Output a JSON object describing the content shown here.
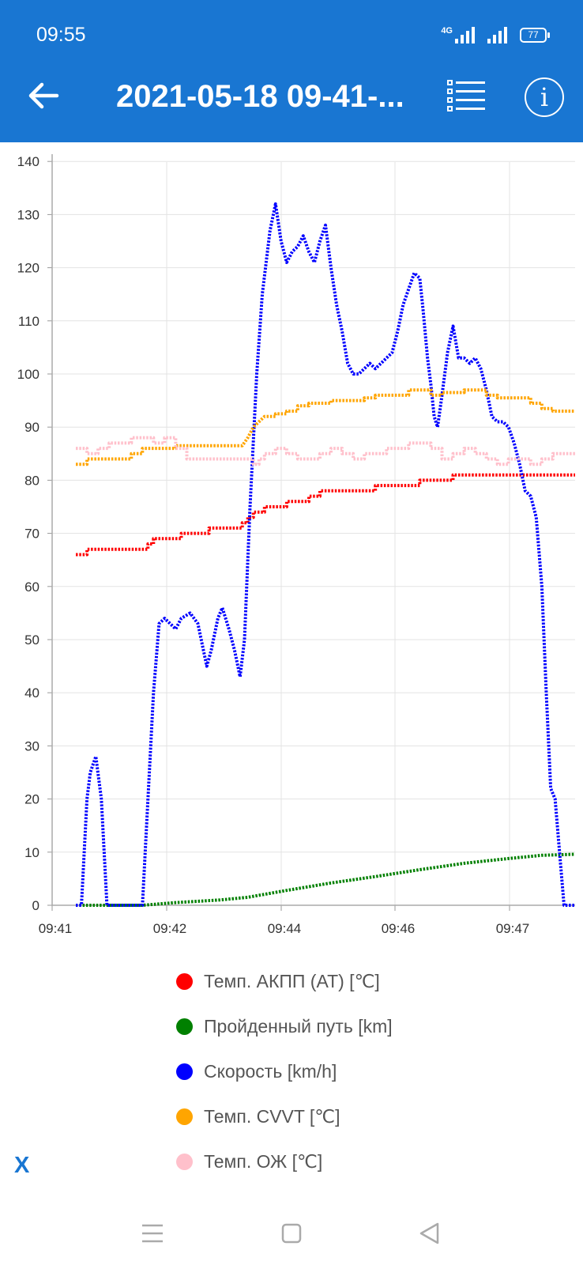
{
  "status_bar": {
    "time": "09:55",
    "network": "4G",
    "battery": "77"
  },
  "toolbar": {
    "title": "2021-05-18 09-41-..."
  },
  "legend": {
    "items": [
      {
        "label": "Темп. АКПП (AT) [℃]",
        "color": "#ff0000"
      },
      {
        "label": "Пройденный путь [km]",
        "color": "#008000"
      },
      {
        "label": "Скорость [km/h]",
        "color": "#0000ff"
      },
      {
        "label": "Темп. CVVT [℃]",
        "color": "#ffa500"
      },
      {
        "label": "Темп. ОЖ [℃]",
        "color": "#ffc0cb"
      }
    ]
  },
  "close_label": "X",
  "chart_data": {
    "type": "line",
    "ylim": [
      0,
      140
    ],
    "yticks": [
      0,
      10,
      20,
      30,
      40,
      50,
      60,
      70,
      80,
      90,
      100,
      110,
      120,
      130,
      140
    ],
    "xticks": [
      "09:41",
      "09:42",
      "09:44",
      "09:46",
      "09:47"
    ],
    "xlim": [
      0,
      46
    ],
    "grid": true,
    "legend_position": "bottom",
    "series": [
      {
        "name": "Темп. АКПП (AT) [℃]",
        "color": "#ff0000",
        "points": [
          [
            1,
            66
          ],
          [
            2,
            66
          ],
          [
            2,
            67
          ],
          [
            7.5,
            67
          ],
          [
            7.5,
            68
          ],
          [
            8,
            68
          ],
          [
            8,
            69
          ],
          [
            10.5,
            69
          ],
          [
            10.5,
            70
          ],
          [
            13,
            70
          ],
          [
            13,
            71
          ],
          [
            16,
            71
          ],
          [
            16,
            72
          ],
          [
            16.5,
            72
          ],
          [
            16.5,
            73
          ],
          [
            17,
            73
          ],
          [
            17,
            74
          ],
          [
            18,
            74
          ],
          [
            18,
            75
          ],
          [
            20,
            75
          ],
          [
            20,
            76
          ],
          [
            22,
            76
          ],
          [
            22,
            77
          ],
          [
            23,
            77
          ],
          [
            23,
            78
          ],
          [
            28,
            78
          ],
          [
            28,
            79
          ],
          [
            32,
            79
          ],
          [
            32,
            80
          ],
          [
            35,
            80
          ],
          [
            35,
            81
          ],
          [
            46,
            81
          ]
        ]
      },
      {
        "name": "Пройденный путь [km]",
        "color": "#008000",
        "points": [
          [
            1,
            0
          ],
          [
            7,
            0
          ],
          [
            10,
            0.5
          ],
          [
            14,
            1
          ],
          [
            16.5,
            1.5
          ],
          [
            20,
            2.8
          ],
          [
            24,
            4.2
          ],
          [
            28,
            5.4
          ],
          [
            32,
            6.7
          ],
          [
            36,
            7.9
          ],
          [
            40,
            8.8
          ],
          [
            43,
            9.4
          ],
          [
            46,
            9.6
          ]
        ]
      },
      {
        "name": "Скорость [km/h]",
        "color": "#0000ff",
        "points": [
          [
            1,
            0
          ],
          [
            1.5,
            0
          ],
          [
            2,
            20
          ],
          [
            2.3,
            25
          ],
          [
            2.8,
            28
          ],
          [
            3.3,
            20
          ],
          [
            3.8,
            0
          ],
          [
            7,
            0
          ],
          [
            7.5,
            20
          ],
          [
            8,
            40
          ],
          [
            8.5,
            53
          ],
          [
            9,
            54
          ],
          [
            9.5,
            53
          ],
          [
            10,
            52
          ],
          [
            10.5,
            54
          ],
          [
            11.3,
            55
          ],
          [
            12,
            53
          ],
          [
            12.5,
            48
          ],
          [
            12.8,
            45
          ],
          [
            13.2,
            48
          ],
          [
            13.8,
            54
          ],
          [
            14.2,
            56
          ],
          [
            14.8,
            52
          ],
          [
            15.3,
            48
          ],
          [
            15.8,
            43
          ],
          [
            16.2,
            50
          ],
          [
            16.7,
            75
          ],
          [
            17.3,
            100
          ],
          [
            17.8,
            115
          ],
          [
            18.5,
            127
          ],
          [
            19,
            132
          ],
          [
            19.5,
            125
          ],
          [
            20,
            121
          ],
          [
            20.5,
            123
          ],
          [
            21,
            124
          ],
          [
            21.5,
            126
          ],
          [
            22,
            123
          ],
          [
            22.5,
            121
          ],
          [
            23,
            125
          ],
          [
            23.5,
            128
          ],
          [
            24,
            120
          ],
          [
            24.5,
            113
          ],
          [
            25,
            108
          ],
          [
            25.5,
            102
          ],
          [
            26,
            100
          ],
          [
            26.5,
            100
          ],
          [
            27,
            101
          ],
          [
            27.5,
            102
          ],
          [
            28,
            101
          ],
          [
            28.5,
            102
          ],
          [
            29,
            103
          ],
          [
            29.5,
            104
          ],
          [
            30,
            108
          ],
          [
            30.5,
            113
          ],
          [
            31,
            116
          ],
          [
            31.5,
            119
          ],
          [
            32,
            118
          ],
          [
            32.3,
            112
          ],
          [
            32.7,
            103
          ],
          [
            33,
            98
          ],
          [
            33.3,
            92
          ],
          [
            33.6,
            90
          ],
          [
            34,
            96
          ],
          [
            34.5,
            104
          ],
          [
            35,
            109
          ],
          [
            35.5,
            103
          ],
          [
            36,
            103
          ],
          [
            36.5,
            102
          ],
          [
            37,
            103
          ],
          [
            37.5,
            101
          ],
          [
            38,
            97
          ],
          [
            38.5,
            92
          ],
          [
            39,
            91
          ],
          [
            39.5,
            91
          ],
          [
            40,
            90
          ],
          [
            40.5,
            87
          ],
          [
            41,
            83
          ],
          [
            41.5,
            78
          ],
          [
            42,
            77
          ],
          [
            42.5,
            73
          ],
          [
            43,
            60
          ],
          [
            43.4,
            40
          ],
          [
            43.8,
            22
          ],
          [
            44.2,
            20
          ],
          [
            44.6,
            10
          ],
          [
            45,
            0
          ],
          [
            46,
            0
          ]
        ]
      },
      {
        "name": "Темп. CVVT [℃]",
        "color": "#ffa500",
        "points": [
          [
            1,
            83
          ],
          [
            2,
            83
          ],
          [
            2,
            84
          ],
          [
            6,
            84
          ],
          [
            6,
            85
          ],
          [
            7,
            85
          ],
          [
            7,
            86
          ],
          [
            10,
            86
          ],
          [
            10,
            86.5
          ],
          [
            16,
            86.5
          ],
          [
            16.5,
            88
          ],
          [
            17,
            90
          ],
          [
            17.5,
            91
          ],
          [
            18,
            92
          ],
          [
            19,
            92
          ],
          [
            19,
            92.5
          ],
          [
            20,
            92.5
          ],
          [
            20,
            93
          ],
          [
            21,
            93
          ],
          [
            21,
            94
          ],
          [
            22,
            94
          ],
          [
            22,
            94.5
          ],
          [
            24,
            94.5
          ],
          [
            24,
            95
          ],
          [
            27,
            95
          ],
          [
            27,
            95.5
          ],
          [
            28,
            95.5
          ],
          [
            28,
            96
          ],
          [
            31,
            96
          ],
          [
            31,
            97
          ],
          [
            33,
            97
          ],
          [
            33,
            96
          ],
          [
            34,
            96
          ],
          [
            34,
            96.5
          ],
          [
            36,
            96.5
          ],
          [
            36,
            97
          ],
          [
            38,
            97
          ],
          [
            38,
            96
          ],
          [
            39,
            96
          ],
          [
            39,
            95.5
          ],
          [
            42,
            95.5
          ],
          [
            42,
            94.5
          ],
          [
            43,
            94.5
          ],
          [
            43,
            93.5
          ],
          [
            44,
            93.5
          ],
          [
            44,
            93
          ],
          [
            46,
            93
          ]
        ]
      },
      {
        "name": "Темп. ОЖ [℃]",
        "color": "#ffc0cb",
        "points": [
          [
            1,
            86
          ],
          [
            2,
            86
          ],
          [
            2,
            85
          ],
          [
            3,
            85
          ],
          [
            3,
            86
          ],
          [
            4,
            86
          ],
          [
            4,
            87
          ],
          [
            6,
            87
          ],
          [
            6,
            88
          ],
          [
            8,
            88
          ],
          [
            8,
            87
          ],
          [
            9,
            87
          ],
          [
            9,
            88
          ],
          [
            10,
            88
          ],
          [
            10,
            86
          ],
          [
            11,
            86
          ],
          [
            11,
            84
          ],
          [
            17,
            84
          ],
          [
            17,
            83
          ],
          [
            17.5,
            83
          ],
          [
            17.5,
            84
          ],
          [
            18,
            84
          ],
          [
            18,
            85
          ],
          [
            19,
            85
          ],
          [
            19,
            86
          ],
          [
            20,
            86
          ],
          [
            20,
            85
          ],
          [
            21,
            85
          ],
          [
            21,
            84
          ],
          [
            23,
            84
          ],
          [
            23,
            85
          ],
          [
            24,
            85
          ],
          [
            24,
            86
          ],
          [
            25,
            86
          ],
          [
            25,
            85
          ],
          [
            26,
            85
          ],
          [
            26,
            84
          ],
          [
            27,
            84
          ],
          [
            27,
            85
          ],
          [
            29,
            85
          ],
          [
            29,
            86
          ],
          [
            31,
            86
          ],
          [
            31,
            87
          ],
          [
            33,
            87
          ],
          [
            33,
            86
          ],
          [
            34,
            86
          ],
          [
            34,
            84
          ],
          [
            35,
            84
          ],
          [
            35,
            85
          ],
          [
            36,
            85
          ],
          [
            36,
            86
          ],
          [
            37,
            86
          ],
          [
            37,
            85
          ],
          [
            38,
            85
          ],
          [
            38,
            84
          ],
          [
            39,
            84
          ],
          [
            39,
            83
          ],
          [
            40,
            83
          ],
          [
            40,
            84
          ],
          [
            42,
            84
          ],
          [
            42,
            83
          ],
          [
            43,
            83
          ],
          [
            43,
            84
          ],
          [
            44,
            84
          ],
          [
            44,
            85
          ],
          [
            46,
            85
          ]
        ]
      }
    ]
  }
}
